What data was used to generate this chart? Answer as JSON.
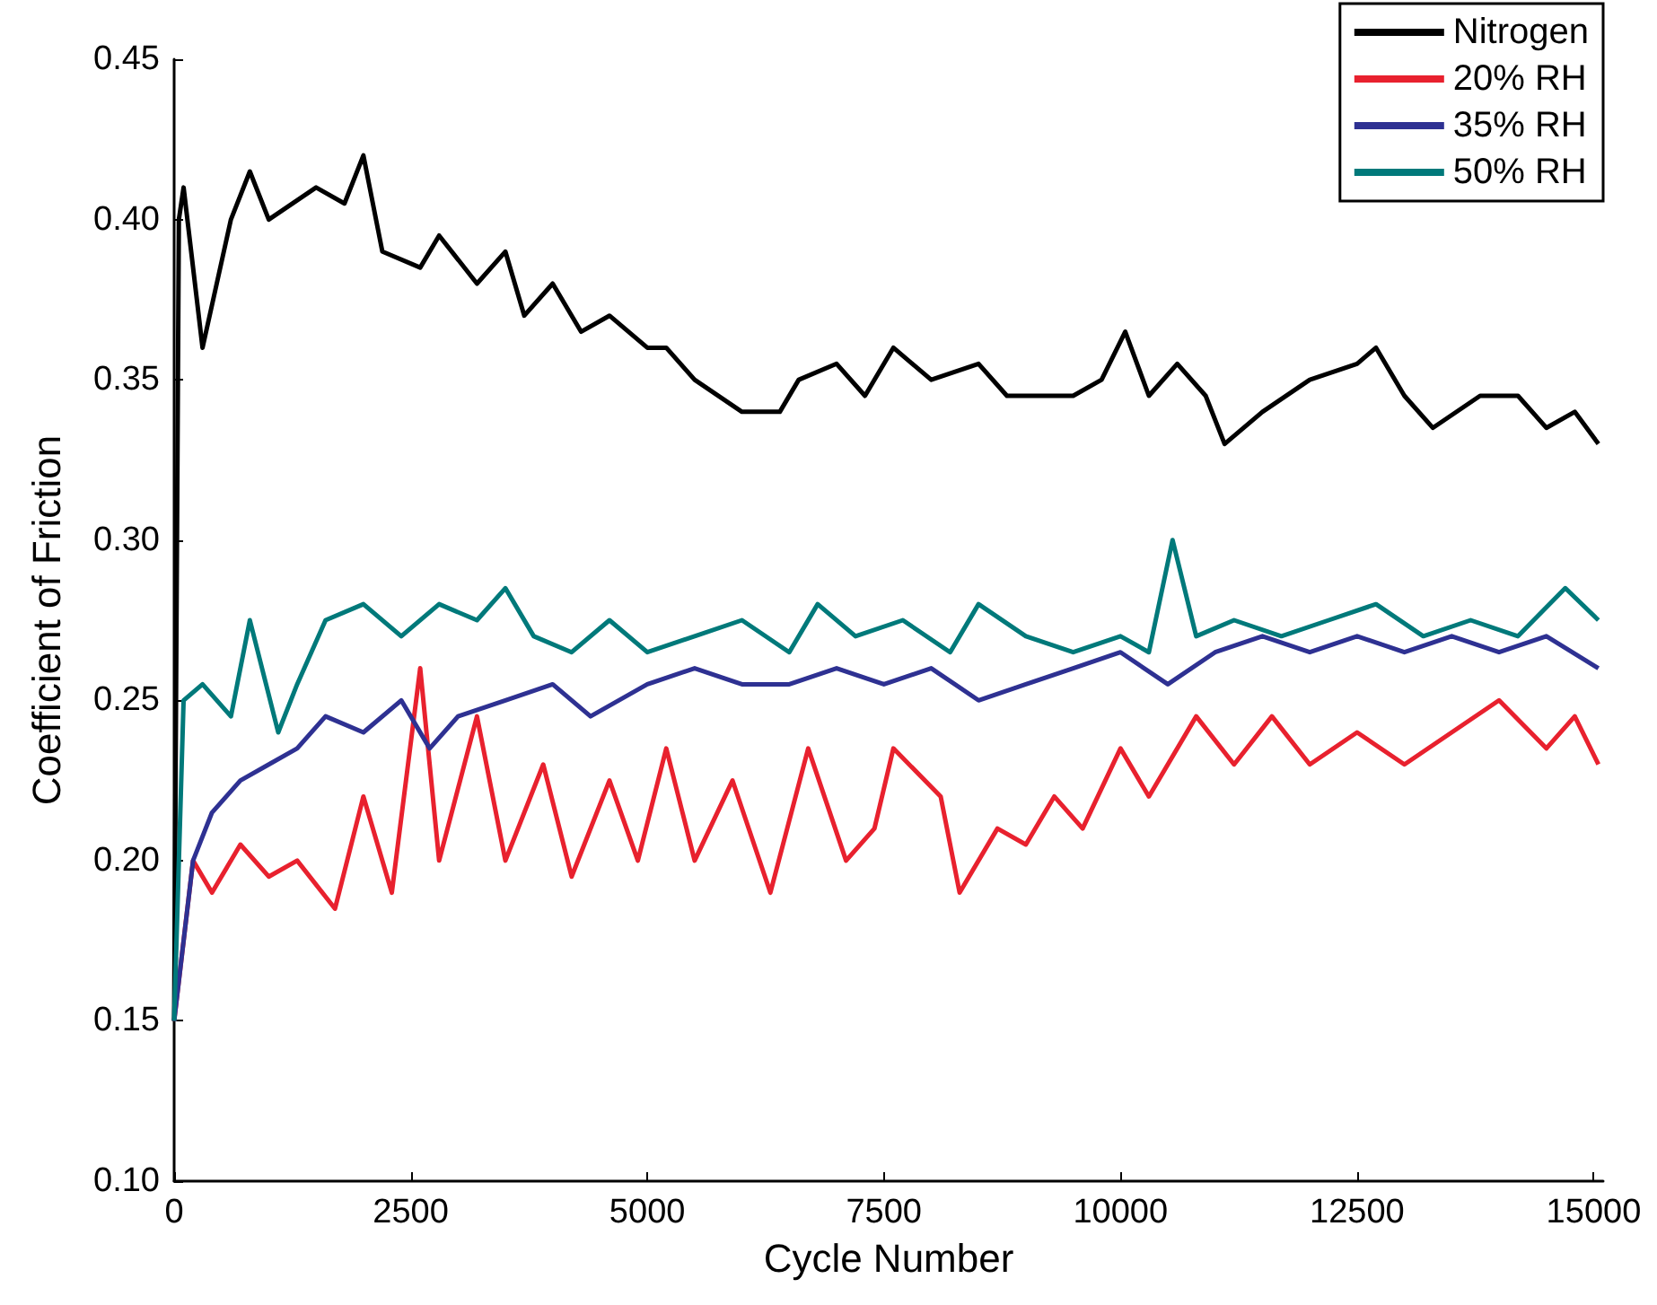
{
  "chart_data": {
    "type": "line",
    "xlabel": "Cycle Number",
    "ylabel": "Coefficient of Friction",
    "xlim": [
      0,
      15100
    ],
    "ylim": [
      0.1,
      0.45
    ],
    "xticks": [
      0,
      2500,
      5000,
      7500,
      10000,
      12500,
      15000
    ],
    "yticks": [
      {
        "value": 0.1,
        "label": "0.10"
      },
      {
        "value": 0.15,
        "label": "0.15"
      },
      {
        "value": 0.2,
        "label": "0.20"
      },
      {
        "value": 0.25,
        "label": "0.25"
      },
      {
        "value": 0.3,
        "label": "0.30"
      },
      {
        "value": 0.35,
        "label": "0.35"
      },
      {
        "value": 0.4,
        "label": "0.40"
      },
      {
        "value": 0.45,
        "label": "0.45"
      }
    ],
    "grid": false,
    "legend": "top right",
    "marker": "none",
    "line_style": "solid",
    "series": [
      {
        "name": "Nitrogen",
        "color": "#000000",
        "x": [
          0,
          50,
          100,
          300,
          600,
          800,
          1000,
          1500,
          1800,
          2000,
          2200,
          2600,
          2800,
          3200,
          3500,
          3700,
          4000,
          4300,
          4600,
          5000,
          5200,
          5500,
          6000,
          6400,
          6600,
          7000,
          7300,
          7600,
          8000,
          8500,
          8800,
          9500,
          9800,
          10050,
          10300,
          10600,
          10900,
          11100,
          11500,
          12000,
          12500,
          12700,
          13000,
          13300,
          13800,
          14200,
          14500,
          14800,
          15050
        ],
        "values": [
          0.15,
          0.4,
          0.41,
          0.36,
          0.4,
          0.415,
          0.4,
          0.41,
          0.405,
          0.42,
          0.39,
          0.385,
          0.395,
          0.38,
          0.39,
          0.37,
          0.38,
          0.365,
          0.37,
          0.36,
          0.36,
          0.35,
          0.34,
          0.34,
          0.35,
          0.355,
          0.345,
          0.36,
          0.35,
          0.355,
          0.345,
          0.345,
          0.35,
          0.365,
          0.345,
          0.355,
          0.345,
          0.33,
          0.34,
          0.35,
          0.355,
          0.36,
          0.345,
          0.335,
          0.345,
          0.345,
          0.335,
          0.34,
          0.33
        ]
      },
      {
        "name": "20% RH",
        "color": "#e8212e",
        "x": [
          0,
          200,
          400,
          700,
          1000,
          1300,
          1700,
          2000,
          2300,
          2600,
          2800,
          3200,
          3500,
          3900,
          4200,
          4600,
          4900,
          5200,
          5500,
          5900,
          6300,
          6700,
          7100,
          7400,
          7600,
          8100,
          8300,
          8700,
          9000,
          9300,
          9600,
          10000,
          10300,
          10800,
          11200,
          11600,
          12000,
          12500,
          13000,
          13500,
          14000,
          14500,
          14800,
          15050
        ],
        "values": [
          0.15,
          0.2,
          0.19,
          0.205,
          0.195,
          0.2,
          0.185,
          0.22,
          0.19,
          0.26,
          0.2,
          0.245,
          0.2,
          0.23,
          0.195,
          0.225,
          0.2,
          0.235,
          0.2,
          0.225,
          0.19,
          0.235,
          0.2,
          0.21,
          0.235,
          0.22,
          0.19,
          0.21,
          0.205,
          0.22,
          0.21,
          0.235,
          0.22,
          0.245,
          0.23,
          0.245,
          0.23,
          0.24,
          0.23,
          0.24,
          0.25,
          0.235,
          0.245,
          0.23
        ]
      },
      {
        "name": "35% RH",
        "color": "#2e3192",
        "x": [
          0,
          200,
          400,
          700,
          1000,
          1300,
          1600,
          2000,
          2400,
          2700,
          3000,
          3500,
          4000,
          4400,
          5000,
          5500,
          6000,
          6500,
          7000,
          7500,
          8000,
          8500,
          9000,
          9500,
          10000,
          10500,
          11000,
          11500,
          12000,
          12500,
          13000,
          13500,
          14000,
          14500,
          15050
        ],
        "values": [
          0.15,
          0.2,
          0.215,
          0.225,
          0.23,
          0.235,
          0.245,
          0.24,
          0.25,
          0.235,
          0.245,
          0.25,
          0.255,
          0.245,
          0.255,
          0.26,
          0.255,
          0.255,
          0.26,
          0.255,
          0.26,
          0.25,
          0.255,
          0.26,
          0.265,
          0.255,
          0.265,
          0.27,
          0.265,
          0.27,
          0.265,
          0.27,
          0.265,
          0.27,
          0.26
        ]
      },
      {
        "name": "50% RH",
        "color": "#00797a",
        "x": [
          0,
          100,
          300,
          600,
          800,
          1100,
          1300,
          1600,
          2000,
          2400,
          2800,
          3200,
          3500,
          3800,
          4200,
          4600,
          5000,
          5500,
          6000,
          6500,
          6800,
          7200,
          7700,
          8200,
          8500,
          9000,
          9500,
          10000,
          10300,
          10550,
          10800,
          11200,
          11700,
          12200,
          12700,
          13200,
          13700,
          14200,
          14700,
          15050
        ],
        "values": [
          0.15,
          0.25,
          0.255,
          0.245,
          0.275,
          0.24,
          0.255,
          0.275,
          0.28,
          0.27,
          0.28,
          0.275,
          0.285,
          0.27,
          0.265,
          0.275,
          0.265,
          0.27,
          0.275,
          0.265,
          0.28,
          0.27,
          0.275,
          0.265,
          0.28,
          0.27,
          0.265,
          0.27,
          0.265,
          0.3,
          0.27,
          0.275,
          0.27,
          0.275,
          0.28,
          0.27,
          0.275,
          0.27,
          0.285,
          0.275
        ]
      }
    ]
  }
}
